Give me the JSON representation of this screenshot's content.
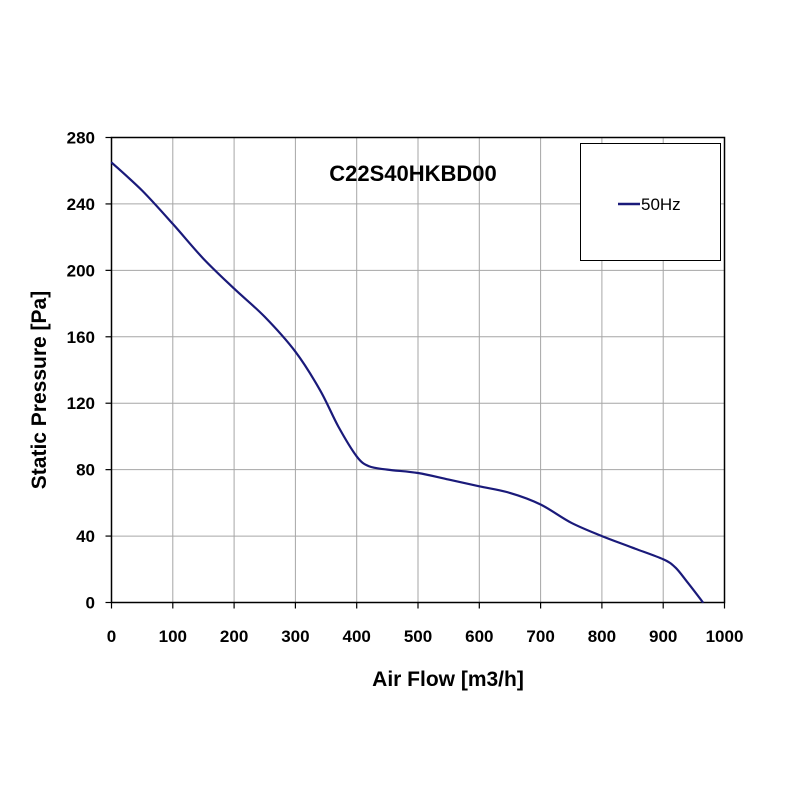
{
  "chart_data": {
    "type": "line",
    "title": "C22S40HKBD00",
    "xlabel": "Air Flow [m3/h]",
    "ylabel": "Static Pressure [Pa]",
    "xlim": [
      0,
      1000
    ],
    "ylim": [
      0,
      280
    ],
    "xticks": [
      "0",
      "100",
      "200",
      "300",
      "400",
      "500",
      "600",
      "700",
      "800",
      "900",
      "1000"
    ],
    "yticks": [
      "0",
      "40",
      "80",
      "120",
      "160",
      "200",
      "240",
      "280"
    ],
    "grid": true,
    "legend_position": "top-right",
    "series": [
      {
        "name": "50Hz",
        "color": "#1a1a7a",
        "x": [
          0,
          50,
          100,
          150,
          200,
          250,
          300,
          340,
          370,
          400,
          420,
          450,
          500,
          550,
          600,
          650,
          700,
          750,
          800,
          850,
          900,
          920,
          940,
          965
        ],
        "y": [
          265,
          248,
          228,
          207,
          189,
          172,
          151,
          128,
          106,
          88,
          82,
          80,
          78,
          74,
          70,
          66,
          59,
          48,
          40,
          33,
          26,
          21,
          12,
          0
        ]
      }
    ]
  }
}
